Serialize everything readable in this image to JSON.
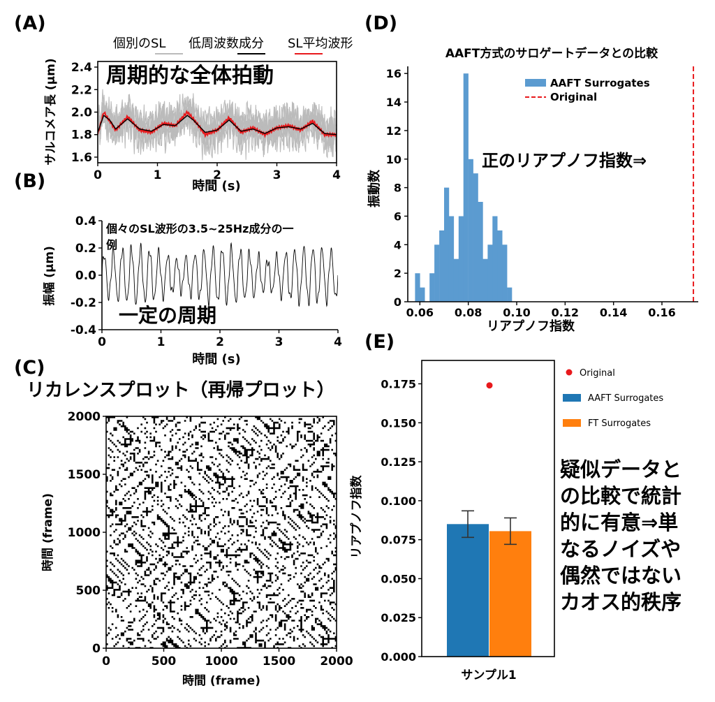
{
  "figure": {
    "panels": {
      "A": {
        "label": "(A)",
        "ylabel": "サルコメア長 (µm)",
        "xlabel": "時間 (s)",
        "annotation": "周期的な全体拍動",
        "legend": {
          "items": [
            {
              "label": "個別のSL",
              "color": "#bbbbbb"
            },
            {
              "label": "低周波数成分",
              "color": "#000000"
            },
            {
              "label": "SL平均波形",
              "color": "#e8191c"
            }
          ]
        },
        "xticks": [
          "0",
          "1",
          "2",
          "3",
          "4"
        ],
        "yticks": [
          "1.6",
          "1.8",
          "2.0",
          "2.2",
          "2.4"
        ]
      },
      "B": {
        "label": "(B)",
        "ylabel": "振幅 (µm)",
        "xlabel": "時間 (s)",
        "annotation_line1": "個々のSL波形の3.5~25Hz成分の一",
        "annotation_line2": "例",
        "annotation2": "一定の周期",
        "xticks": [
          "0",
          "1",
          "2",
          "3",
          "4"
        ],
        "yticks": [
          "-0.4",
          "-0.2",
          "0.0",
          "0.2",
          "0.4"
        ]
      },
      "C": {
        "label": "(C)",
        "title": "リカレンスプロット（再帰プロット）",
        "xlabel": "時間 (frame)",
        "ylabel": "時間 (frame)",
        "xticks": [
          "0",
          "500",
          "1000",
          "1500",
          "2000"
        ],
        "yticks": [
          "0",
          "500",
          "1000",
          "1500",
          "2000"
        ]
      },
      "D": {
        "label": "(D)",
        "title": "AAFT方式のサロゲートデータとの比較",
        "xlabel": "リアプノフ指数",
        "ylabel": "振動数",
        "annotation": "正のリアプノフ指数⇒",
        "legend": {
          "items": [
            {
              "label": "AAFT Surrogates",
              "color": "#5b9bd0"
            },
            {
              "label": "Original",
              "color": "#e8191c"
            }
          ]
        },
        "xticks": [
          "0.06",
          "0.08",
          "0.10",
          "0.12",
          "0.14",
          "0.16"
        ],
        "yticks": [
          "0",
          "2",
          "4",
          "6",
          "8",
          "10",
          "12",
          "14",
          "16"
        ]
      },
      "E": {
        "label": "(E)",
        "xlabel": "サンプル1",
        "ylabel": "リアプノフ指数",
        "legend": {
          "items": [
            {
              "label": "Original",
              "color": "#e8191c"
            },
            {
              "label": "AAFT Surrogates",
              "color": "#1f77b4"
            },
            {
              "label": "FT Surrogates",
              "color": "#ff7f0e"
            }
          ]
        },
        "annotation_lines": [
          "疑似データと",
          "の比較で統計",
          "的に有意⇒単",
          "なるノイズや",
          "偶然ではない",
          "カオス的秩序"
        ],
        "yticks": [
          "0.000",
          "0.025",
          "0.050",
          "0.075",
          "0.100",
          "0.125",
          "0.150",
          "0.175"
        ]
      }
    }
  },
  "chart_data": [
    {
      "panel": "A",
      "type": "line",
      "xlim": [
        0,
        4
      ],
      "ylim": [
        1.55,
        2.45
      ],
      "series": [
        {
          "name": "SL平均波形",
          "x": [
            0,
            0.1,
            0.2,
            0.3,
            0.5,
            0.7,
            0.9,
            1.1,
            1.3,
            1.5,
            1.6,
            1.8,
            2.0,
            2.2,
            2.4,
            2.6,
            2.8,
            3.0,
            3.2,
            3.4,
            3.6,
            3.8,
            4.0
          ],
          "y": [
            1.8,
            2.0,
            1.92,
            1.84,
            1.96,
            1.84,
            1.82,
            1.9,
            1.88,
            2.0,
            1.94,
            1.8,
            1.84,
            1.95,
            1.82,
            1.86,
            1.8,
            1.86,
            1.88,
            1.84,
            1.92,
            1.8,
            1.8
          ]
        },
        {
          "name": "低周波数成分",
          "x": [
            0,
            0.1,
            0.2,
            0.3,
            0.5,
            0.7,
            0.9,
            1.1,
            1.3,
            1.5,
            1.6,
            1.8,
            2.0,
            2.2,
            2.4,
            2.6,
            2.8,
            3.0,
            3.2,
            3.4,
            3.6,
            3.8,
            4.0
          ],
          "y": [
            1.82,
            1.97,
            1.93,
            1.85,
            1.94,
            1.85,
            1.83,
            1.89,
            1.88,
            1.97,
            1.93,
            1.82,
            1.84,
            1.93,
            1.83,
            1.85,
            1.81,
            1.86,
            1.87,
            1.85,
            1.9,
            1.81,
            1.8
          ]
        }
      ]
    },
    {
      "panel": "B",
      "type": "line",
      "xlim": [
        0,
        4
      ],
      "ylim": [
        -0.4,
        0.4
      ],
      "dominant_frequency_hz": 6.5,
      "amplitude_um": 0.2
    },
    {
      "panel": "C",
      "type": "heatmap",
      "xlim": [
        0,
        2000
      ],
      "ylim": [
        0,
        2000
      ]
    },
    {
      "panel": "D",
      "type": "bar",
      "xlim": [
        0.055,
        0.175
      ],
      "ylim": [
        0,
        16.5
      ],
      "bin_width": 0.002,
      "bins": [
        {
          "x": 0.059,
          "count": 2
        },
        {
          "x": 0.061,
          "count": 1
        },
        {
          "x": 0.063,
          "count": 0
        },
        {
          "x": 0.065,
          "count": 2
        },
        {
          "x": 0.067,
          "count": 4
        },
        {
          "x": 0.069,
          "count": 5
        },
        {
          "x": 0.071,
          "count": 8
        },
        {
          "x": 0.073,
          "count": 6
        },
        {
          "x": 0.075,
          "count": 3
        },
        {
          "x": 0.077,
          "count": 6
        },
        {
          "x": 0.079,
          "count": 16
        },
        {
          "x": 0.081,
          "count": 10
        },
        {
          "x": 0.083,
          "count": 9
        },
        {
          "x": 0.085,
          "count": 7
        },
        {
          "x": 0.087,
          "count": 3
        },
        {
          "x": 0.089,
          "count": 4
        },
        {
          "x": 0.091,
          "count": 6
        },
        {
          "x": 0.093,
          "count": 5
        },
        {
          "x": 0.095,
          "count": 4
        },
        {
          "x": 0.097,
          "count": 1
        }
      ],
      "original_line_x": 0.173,
      "legend_position": "top-center"
    },
    {
      "panel": "E",
      "type": "bar",
      "categories": [
        "サンプル1"
      ],
      "ylim": [
        0,
        0.19
      ],
      "series": [
        {
          "name": "AAFT Surrogates",
          "value": 0.085,
          "error": 0.0085
        },
        {
          "name": "FT Surrogates",
          "value": 0.0805,
          "error": 0.0085
        }
      ],
      "original_point": 0.174
    }
  ]
}
